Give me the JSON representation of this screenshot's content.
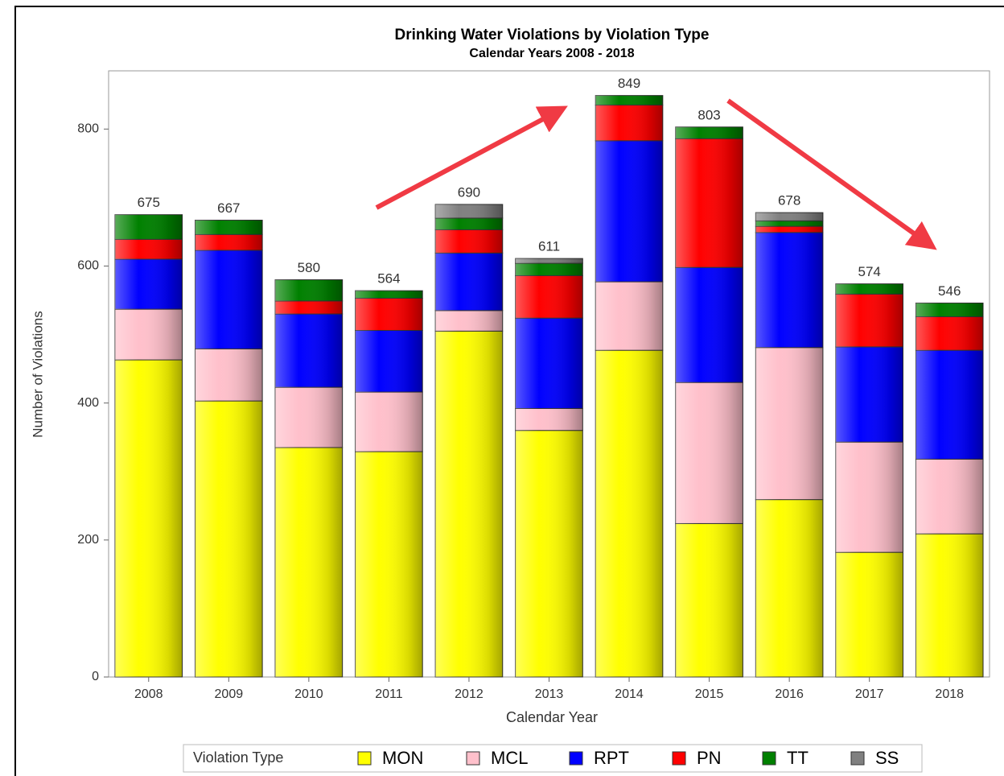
{
  "chart_data": {
    "type": "stacked_bar",
    "title": "Drinking Water Violations by Violation Type",
    "subtitle": "Calendar Years 2008 - 2018",
    "x_label": "Calendar Year",
    "y_label": "Number of Violations",
    "legend_title": "Violation Type",
    "legend_position": "bottom",
    "categories": [
      "2008",
      "2009",
      "2010",
      "2011",
      "2012",
      "2013",
      "2014",
      "2015",
      "2016",
      "2017",
      "2018"
    ],
    "series": [
      {
        "name": "MON",
        "color": "#ffff00",
        "values": [
          463,
          403,
          335,
          329,
          505,
          360,
          477,
          224,
          259,
          182,
          209
        ]
      },
      {
        "name": "MCL",
        "color": "#ffc0cb",
        "values": [
          74,
          76,
          88,
          87,
          30,
          32,
          100,
          206,
          222,
          161,
          109
        ]
      },
      {
        "name": "RPT",
        "color": "#0000ff",
        "values": [
          73,
          144,
          107,
          90,
          84,
          132,
          206,
          168,
          168,
          139,
          159
        ]
      },
      {
        "name": "PN",
        "color": "#ff0000",
        "values": [
          29,
          23,
          19,
          47,
          34,
          62,
          52,
          188,
          9,
          77,
          49
        ]
      },
      {
        "name": "TT",
        "color": "#008000",
        "values": [
          36,
          21,
          31,
          11,
          17,
          18,
          14,
          17,
          8,
          15,
          20
        ]
      },
      {
        "name": "SS",
        "color": "#808080",
        "values": [
          0,
          0,
          0,
          0,
          20,
          7,
          0,
          0,
          12,
          0,
          0
        ]
      }
    ],
    "totals": [
      675,
      667,
      580,
      564,
      690,
      611,
      849,
      803,
      678,
      574,
      546
    ],
    "ylim": [
      0,
      885
    ],
    "yticks": [
      0,
      200,
      400,
      600,
      800
    ],
    "grid": false
  }
}
